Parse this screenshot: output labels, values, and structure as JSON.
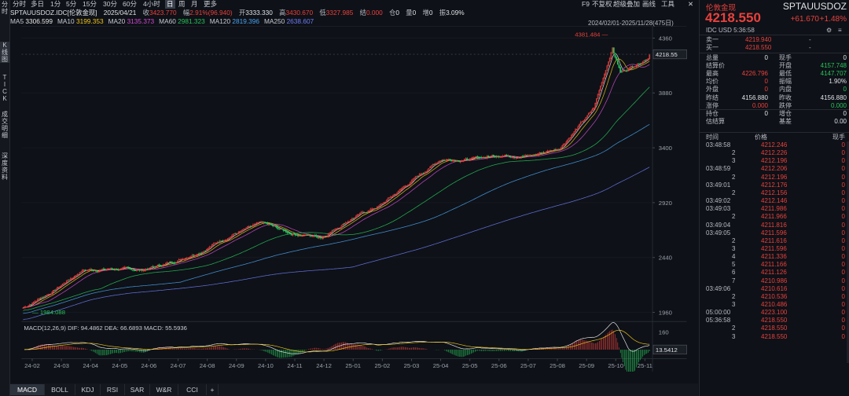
{
  "left_toolbar": [
    {
      "label": "分时",
      "active": false
    },
    {
      "label": "K线图",
      "active": true
    },
    {
      "label": "TICK",
      "active": false
    },
    {
      "label": "成交明细",
      "active": false
    },
    {
      "label": "深度资料",
      "active": false
    }
  ],
  "periods": [
    "分时",
    "多日",
    "1分",
    "5分",
    "15分",
    "30分",
    "60分",
    "4小时",
    "日",
    "周",
    "月",
    "更多"
  ],
  "active_period": "日",
  "top_right": [
    "F9",
    "不复权",
    "超级叠加",
    "画线",
    "工具"
  ],
  "info": {
    "symbol": "SPTAUUSDOZ.IDC[伦敦金现]",
    "date": "2025/04/21",
    "close_label": "收",
    "close": "3423.770",
    "amp_label": "幅",
    "amp": "2.91%(96.940)",
    "open_label": "开",
    "open": "3333.330",
    "high_label": "高",
    "high": "3430.670",
    "low_label": "低",
    "low": "3327.985",
    "settle_label": "结",
    "settle": "0.000",
    "pos_label": "仓",
    "pos": "0",
    "vol_label": "量",
    "vol": "0",
    "inc_label": "增",
    "inc": "0",
    "swing_label": "振",
    "swing": "3.09%"
  },
  "ma": [
    {
      "label": "MA5",
      "value": "3306.599",
      "color": "#e6e6e6"
    },
    {
      "label": "MA10",
      "value": "3199.353",
      "color": "#f0c419"
    },
    {
      "label": "MA20",
      "value": "3135.373",
      "color": "#d44bd4"
    },
    {
      "label": "MA60",
      "value": "2981.323",
      "color": "#27c45a"
    },
    {
      "label": "MA120",
      "value": "2819.396",
      "color": "#4aa3f0"
    },
    {
      "label": "MA250",
      "value": "2638.607",
      "color": "#6f7cf5"
    }
  ],
  "range_text": "2024/02/01-2025/11/28(475日)",
  "price_axis": [
    "4360",
    "3880",
    "3400",
    "2920",
    "2440",
    "1960"
  ],
  "price_last_tag": "4218.55",
  "annot_high": "4381.484",
  "annot_low": "1984.088",
  "macd": {
    "label": "MACD(12,26,9)",
    "dif_label": "DIF:",
    "dif": "94.4862",
    "dea_label": "DEA:",
    "dea": "66.6893",
    "macd_label": "MACD:",
    "macd": "55.5936",
    "axis_top": "160",
    "last_tag": "13.5412"
  },
  "x_labels": [
    "24-02",
    "24-03",
    "24-04",
    "24-05",
    "24-06",
    "24-07",
    "24-08",
    "24-09",
    "24-10",
    "24-11",
    "24-12",
    "25-01",
    "25-02",
    "25-03",
    "25-04",
    "25-05",
    "25-06",
    "25-07",
    "25-08",
    "25-09",
    "25-10",
    "25-11"
  ],
  "bottom_tabs": [
    "MACD",
    "BOLL",
    "KDJ",
    "RSI",
    "SAR",
    "W&R",
    "CCI",
    "+"
  ],
  "panel": {
    "name": "伦敦金现",
    "code": "SPTAUUSDOZ",
    "price": "4218.550",
    "change": "+61.670",
    "change_pct": "+1.48%",
    "source": "IDC  USD  5:36:58",
    "book": [
      {
        "label": "卖一",
        "price": "4219.940",
        "vol": "-"
      },
      {
        "label": "买一",
        "price": "4218.550",
        "vol": "-"
      }
    ],
    "stats": [
      {
        "l1": "总量",
        "v1": "0",
        "c1": "#dfe2e6",
        "l2": "现手",
        "v2": "0",
        "c2": "#dfe2e6"
      },
      {
        "l1": "结算价",
        "v1": "",
        "c1": "#dfe2e6",
        "l2": "开盘",
        "v2": "4157.748",
        "c2": "#27c45a"
      },
      {
        "l1": "最高",
        "v1": "4226.796",
        "c1": "#e8413d",
        "l2": "最低",
        "v2": "4147.707",
        "c2": "#27c45a"
      },
      {
        "l1": "均价",
        "v1": "0",
        "c1": "#e8413d",
        "l2": "振幅",
        "v2": "1.90%",
        "c2": "#dfe2e6"
      },
      {
        "l1": "外盘",
        "v1": "0",
        "c1": "#e8413d",
        "l2": "内盘",
        "v2": "0",
        "c2": "#27c45a"
      },
      {
        "l1": "昨结",
        "v1": "4156.880",
        "c1": "#dfe2e6",
        "l2": "昨收",
        "v2": "4156.880",
        "c2": "#dfe2e6"
      },
      {
        "l1": "涨停",
        "v1": "0.000",
        "c1": "#e8413d",
        "l2": "跌停",
        "v2": "0.000",
        "c2": "#27c45a"
      },
      {
        "l1": "持仓",
        "v1": "0",
        "c1": "#dfe2e6",
        "l2": "增仓",
        "v2": "0",
        "c2": "#dfe2e6"
      },
      {
        "l1": "估结算",
        "v1": "",
        "c1": "#dfe2e6",
        "l2": "基差",
        "v2": "0.00",
        "c2": "#dfe2e6"
      }
    ],
    "tick_headers": [
      "时间",
      "价格",
      "现手"
    ],
    "ticks": [
      {
        "t": "03:48:58",
        "p": "4212.246",
        "v": "0"
      },
      {
        "t": "2",
        "p": "4212.226",
        "v": "0"
      },
      {
        "t": "3",
        "p": "4212.196",
        "v": "0"
      },
      {
        "t": "03:48:59",
        "p": "4212.206",
        "v": "0"
      },
      {
        "t": "2",
        "p": "4212.196",
        "v": "0"
      },
      {
        "t": "03:49:01",
        "p": "4212.176",
        "v": "0"
      },
      {
        "t": "2",
        "p": "4212.156",
        "v": "0"
      },
      {
        "t": "03:49:02",
        "p": "4212.146",
        "v": "0"
      },
      {
        "t": "03:49:03",
        "p": "4211.986",
        "v": "0"
      },
      {
        "t": "2",
        "p": "4211.966",
        "v": "0"
      },
      {
        "t": "03:49:04",
        "p": "4211.816",
        "v": "0"
      },
      {
        "t": "03:49:05",
        "p": "4211.596",
        "v": "0"
      },
      {
        "t": "2",
        "p": "4211.616",
        "v": "0"
      },
      {
        "t": "3",
        "p": "4211.596",
        "v": "0"
      },
      {
        "t": "4",
        "p": "4211.336",
        "v": "0"
      },
      {
        "t": "5",
        "p": "4211.166",
        "v": "0"
      },
      {
        "t": "6",
        "p": "4211.126",
        "v": "0"
      },
      {
        "t": "7",
        "p": "4210.986",
        "v": "0"
      },
      {
        "t": "03:49:06",
        "p": "4210.616",
        "v": "0"
      },
      {
        "t": "2",
        "p": "4210.536",
        "v": "0"
      },
      {
        "t": "3",
        "p": "4210.486",
        "v": "0"
      },
      {
        "t": "05:00:00",
        "p": "4223.100",
        "v": "0"
      },
      {
        "t": "05:36:58",
        "p": "4218.550",
        "v": "0"
      },
      {
        "t": "2",
        "p": "4218.550",
        "v": "0"
      },
      {
        "t": "3",
        "p": "4218.550",
        "v": "0"
      }
    ]
  },
  "colors": {
    "up": "#e8413d",
    "down": "#27c45a",
    "bg": "#0e1117"
  },
  "chart_data": {
    "type": "candlestick",
    "price_axis_ticks": [
      4360,
      3880,
      3400,
      2920,
      2440,
      1960
    ],
    "price_axis_range": [
      1960,
      4360
    ],
    "period_high": 4381.484,
    "period_low": 1984.088,
    "last_price": 4218.55,
    "close_path": [
      [
        "24-02",
        2000
      ],
      [
        "24-03",
        2150
      ],
      [
        "24-04",
        2330
      ],
      [
        "24-05",
        2340
      ],
      [
        "24-06",
        2330
      ],
      [
        "24-07",
        2400
      ],
      [
        "24-08",
        2500
      ],
      [
        "24-09",
        2640
      ],
      [
        "24-10",
        2740
      ],
      [
        "24-11",
        2650
      ],
      [
        "24-12",
        2620
      ],
      [
        "25-01",
        2780
      ],
      [
        "25-02",
        2900
      ],
      [
        "25-03",
        3100
      ],
      [
        "25-04",
        3300
      ],
      [
        "25-05",
        3300
      ],
      [
        "25-06",
        3340
      ],
      [
        "25-07",
        3330
      ],
      [
        "25-08",
        3400
      ],
      [
        "25-09",
        3700
      ],
      [
        "25-10",
        4050
      ],
      [
        "25-11",
        4200
      ]
    ],
    "ma_series": [
      "MA5",
      "MA10",
      "MA20",
      "MA60",
      "MA120",
      "MA250"
    ],
    "macd_axis_top": 160,
    "macd": {
      "DIF": 94.4862,
      "DEA": 66.6893,
      "MACD": 55.5936,
      "last": 13.5412
    }
  }
}
